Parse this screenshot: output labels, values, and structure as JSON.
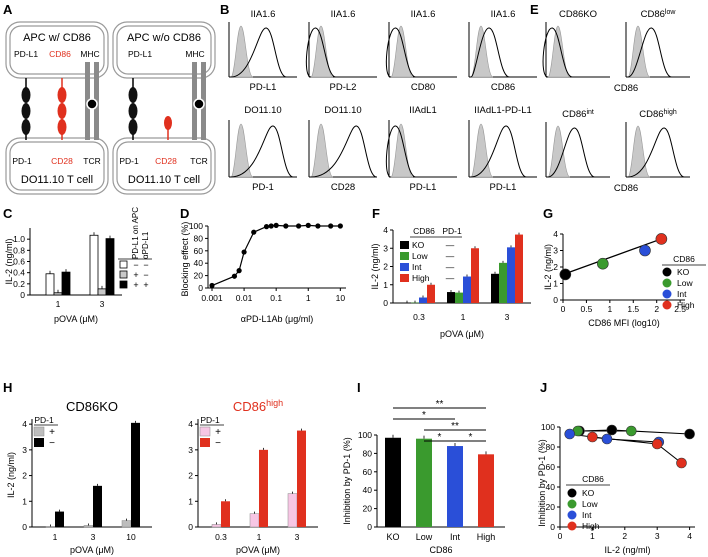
{
  "figure": {
    "panel_labels": [
      "A",
      "B",
      "C",
      "D",
      "E",
      "F",
      "G",
      "H",
      "I",
      "J"
    ]
  },
  "colors": {
    "ko": "#000000",
    "low": "#3a9a2e",
    "int": "#2a4fd8",
    "high": "#e0301e",
    "pink": "#f7c6e4",
    "grey": "#bdbdbd",
    "red_label": "#e0301e",
    "fill_grey": "#c8c8c8"
  },
  "panelA": {
    "left_title": "APC w/ CD86",
    "right_title": "APC w/o CD86",
    "labels_top_left": [
      "PD-L1",
      "CD86",
      "MHC"
    ],
    "labels_top_right": [
      "PD-L1",
      "MHC"
    ],
    "labels_bottom_left": [
      "PD-1",
      "CD28",
      "TCR"
    ],
    "labels_bottom_right": [
      "PD-1",
      "CD28",
      "TCR"
    ],
    "tcell_label": "DO11.10 T cell"
  },
  "panelB": {
    "top_row": [
      {
        "cell": "IIA1.6",
        "marker": "PD-L1"
      },
      {
        "cell": "IIA1.6",
        "marker": "PD-L2"
      },
      {
        "cell": "IIA1.6",
        "marker": "CD80"
      },
      {
        "cell": "IIA1.6",
        "marker": "CD86"
      }
    ],
    "bottom_row": [
      {
        "cell": "DO11.10",
        "marker": "PD-1"
      },
      {
        "cell": "DO11.10",
        "marker": "CD28"
      },
      {
        "cell": "IIAdL1",
        "marker": "PD-L1"
      },
      {
        "cell": "IIAdL1-PD-L1",
        "marker": "PD-L1"
      }
    ]
  },
  "panelE": {
    "titles": [
      "CD86KO",
      "CD86",
      "CD86",
      "CD86"
    ],
    "superscripts": [
      "",
      "low",
      "int",
      "high"
    ],
    "xlabel": "CD86"
  },
  "chart_data": [
    {
      "panel": "C",
      "type": "bar",
      "ylabel": "IL-2 (ng/ml)",
      "xlabel": "pOVA (μM)",
      "categories": [
        "1",
        "3"
      ],
      "ylim": [
        0,
        1.2
      ],
      "yticks": [
        "0",
        "0.2",
        "0.4",
        "0.6",
        "0.8",
        "1.0"
      ],
      "series": [
        {
          "name": "PD-L1 − / αPD-L1 −",
          "values": [
            0.38,
            1.07
          ]
        },
        {
          "name": "PD-L1 + / αPD-L1 −",
          "values": [
            0.04,
            0.11
          ]
        },
        {
          "name": "PD-L1 + / αPD-L1 +",
          "values": [
            0.41,
            1.01
          ]
        }
      ],
      "legend_headers": [
        "PD-L1 on APC",
        "αPD-L1"
      ],
      "legend_signs": [
        [
          "−",
          "−"
        ],
        [
          "+",
          "−"
        ],
        [
          "+",
          "+"
        ]
      ]
    },
    {
      "panel": "D",
      "type": "line",
      "ylabel": "Blocking effect (%)",
      "xlabel": "αPD-L1Ab (μg/ml)",
      "xticks": [
        "0.001",
        "0.01",
        "0.1",
        "1",
        "10"
      ],
      "yticks": [
        "0",
        "20",
        "40",
        "60",
        "80",
        "100"
      ],
      "x": [
        0.001,
        0.005,
        0.007,
        0.01,
        0.02,
        0.05,
        0.07,
        0.1,
        0.2,
        0.5,
        1,
        2,
        5,
        10
      ],
      "y": [
        4,
        19,
        28,
        58,
        90,
        99,
        100,
        101,
        100,
        100,
        101,
        100,
        100,
        100
      ]
    },
    {
      "panel": "F",
      "type": "bar",
      "ylabel": "IL-2 (ng/ml)",
      "xlabel": "pOVA (μM)",
      "categories": [
        "0.3",
        "1",
        "3"
      ],
      "ylim": [
        0,
        4
      ],
      "yticks": [
        "0",
        "1",
        "2",
        "3",
        "4"
      ],
      "legend_headers": [
        "CD86",
        "PD-1"
      ],
      "series": [
        {
          "name": "KO",
          "values": [
            0.02,
            0.6,
            1.6
          ]
        },
        {
          "name": "Low",
          "values": [
            0.02,
            0.57,
            2.2
          ]
        },
        {
          "name": "Int",
          "values": [
            0.3,
            1.45,
            3.05
          ]
        },
        {
          "name": "High",
          "values": [
            1.0,
            3.0,
            3.75
          ]
        }
      ],
      "pd1_marks": [
        "—",
        "—",
        "—",
        "—"
      ]
    },
    {
      "panel": "G",
      "type": "scatter",
      "ylabel": "IL-2 (ng/ml)",
      "xlabel": "CD86 MFI (log10)",
      "xticks": [
        "0",
        "0.5",
        "1",
        "1.5",
        "2",
        "2.5"
      ],
      "yticks": [
        "0",
        "1",
        "2",
        "3",
        "4"
      ],
      "legend_title": "CD86",
      "points": [
        {
          "name": "KO",
          "x": 0.05,
          "y": 1.55
        },
        {
          "name": "Low",
          "x": 0.85,
          "y": 2.2
        },
        {
          "name": "Int",
          "x": 1.75,
          "y": 3.0
        },
        {
          "name": "High",
          "x": 2.1,
          "y": 3.7
        }
      ]
    },
    {
      "panel": "H-left",
      "type": "bar",
      "title": "CD86KO",
      "ylabel": "IL-2 (ng/ml)",
      "xlabel": "pOVA (μM)",
      "categories": [
        "1",
        "3",
        "10"
      ],
      "yticks": [
        "0",
        "1",
        "2",
        "3",
        "4"
      ],
      "legend_title": "PD-1",
      "legend_signs": [
        "+",
        "−"
      ],
      "series": [
        {
          "name": "PD-1 +",
          "values": [
            0.02,
            0.06,
            0.25
          ]
        },
        {
          "name": "PD-1 −",
          "values": [
            0.6,
            1.6,
            4.05
          ]
        }
      ]
    },
    {
      "panel": "H-right",
      "type": "bar",
      "title": "CD86",
      "title_sup": "high",
      "ylabel": "",
      "xlabel": "pOVA (μM)",
      "categories": [
        "0.3",
        "1",
        "3"
      ],
      "yticks": [
        "0",
        "1",
        "2",
        "3",
        "4"
      ],
      "legend_title": "PD-1",
      "legend_signs": [
        "+",
        "−"
      ],
      "series": [
        {
          "name": "PD-1 +",
          "values": [
            0.1,
            0.52,
            1.3
          ]
        },
        {
          "name": "PD-1 −",
          "values": [
            1.0,
            3.0,
            3.75
          ]
        }
      ]
    },
    {
      "panel": "I",
      "type": "bar",
      "ylabel": "Inhibition by PD-1 (%)",
      "xlabel": "CD86",
      "categories": [
        "KO",
        "Low",
        "Int",
        "High"
      ],
      "yticks": [
        "0",
        "20",
        "40",
        "60",
        "80",
        "100"
      ],
      "values": [
        97,
        96,
        88,
        79
      ],
      "significance": [
        "**",
        "*",
        "**",
        "*",
        "*"
      ]
    },
    {
      "panel": "J",
      "type": "scatter",
      "ylabel": "Inhibition by PD-1 (%)",
      "xlabel": "IL-2 (ng/ml)",
      "xticks": [
        "0",
        "1",
        "2",
        "3",
        "4"
      ],
      "yticks": [
        "0",
        "20",
        "40",
        "60",
        "80",
        "100"
      ],
      "legend_title": "CD86",
      "series": [
        {
          "name": "KO",
          "x": [
            0.6,
            1.6,
            4.0
          ],
          "y": [
            96,
            97,
            93
          ]
        },
        {
          "name": "Low",
          "x": [
            0.55,
            2.2
          ],
          "y": [
            96,
            96
          ]
        },
        {
          "name": "Int",
          "x": [
            0.3,
            1.45,
            3.05
          ],
          "y": [
            93,
            88,
            85
          ]
        },
        {
          "name": "High",
          "x": [
            1.0,
            3.0,
            3.75
          ],
          "y": [
            90,
            83,
            64
          ]
        }
      ]
    }
  ]
}
